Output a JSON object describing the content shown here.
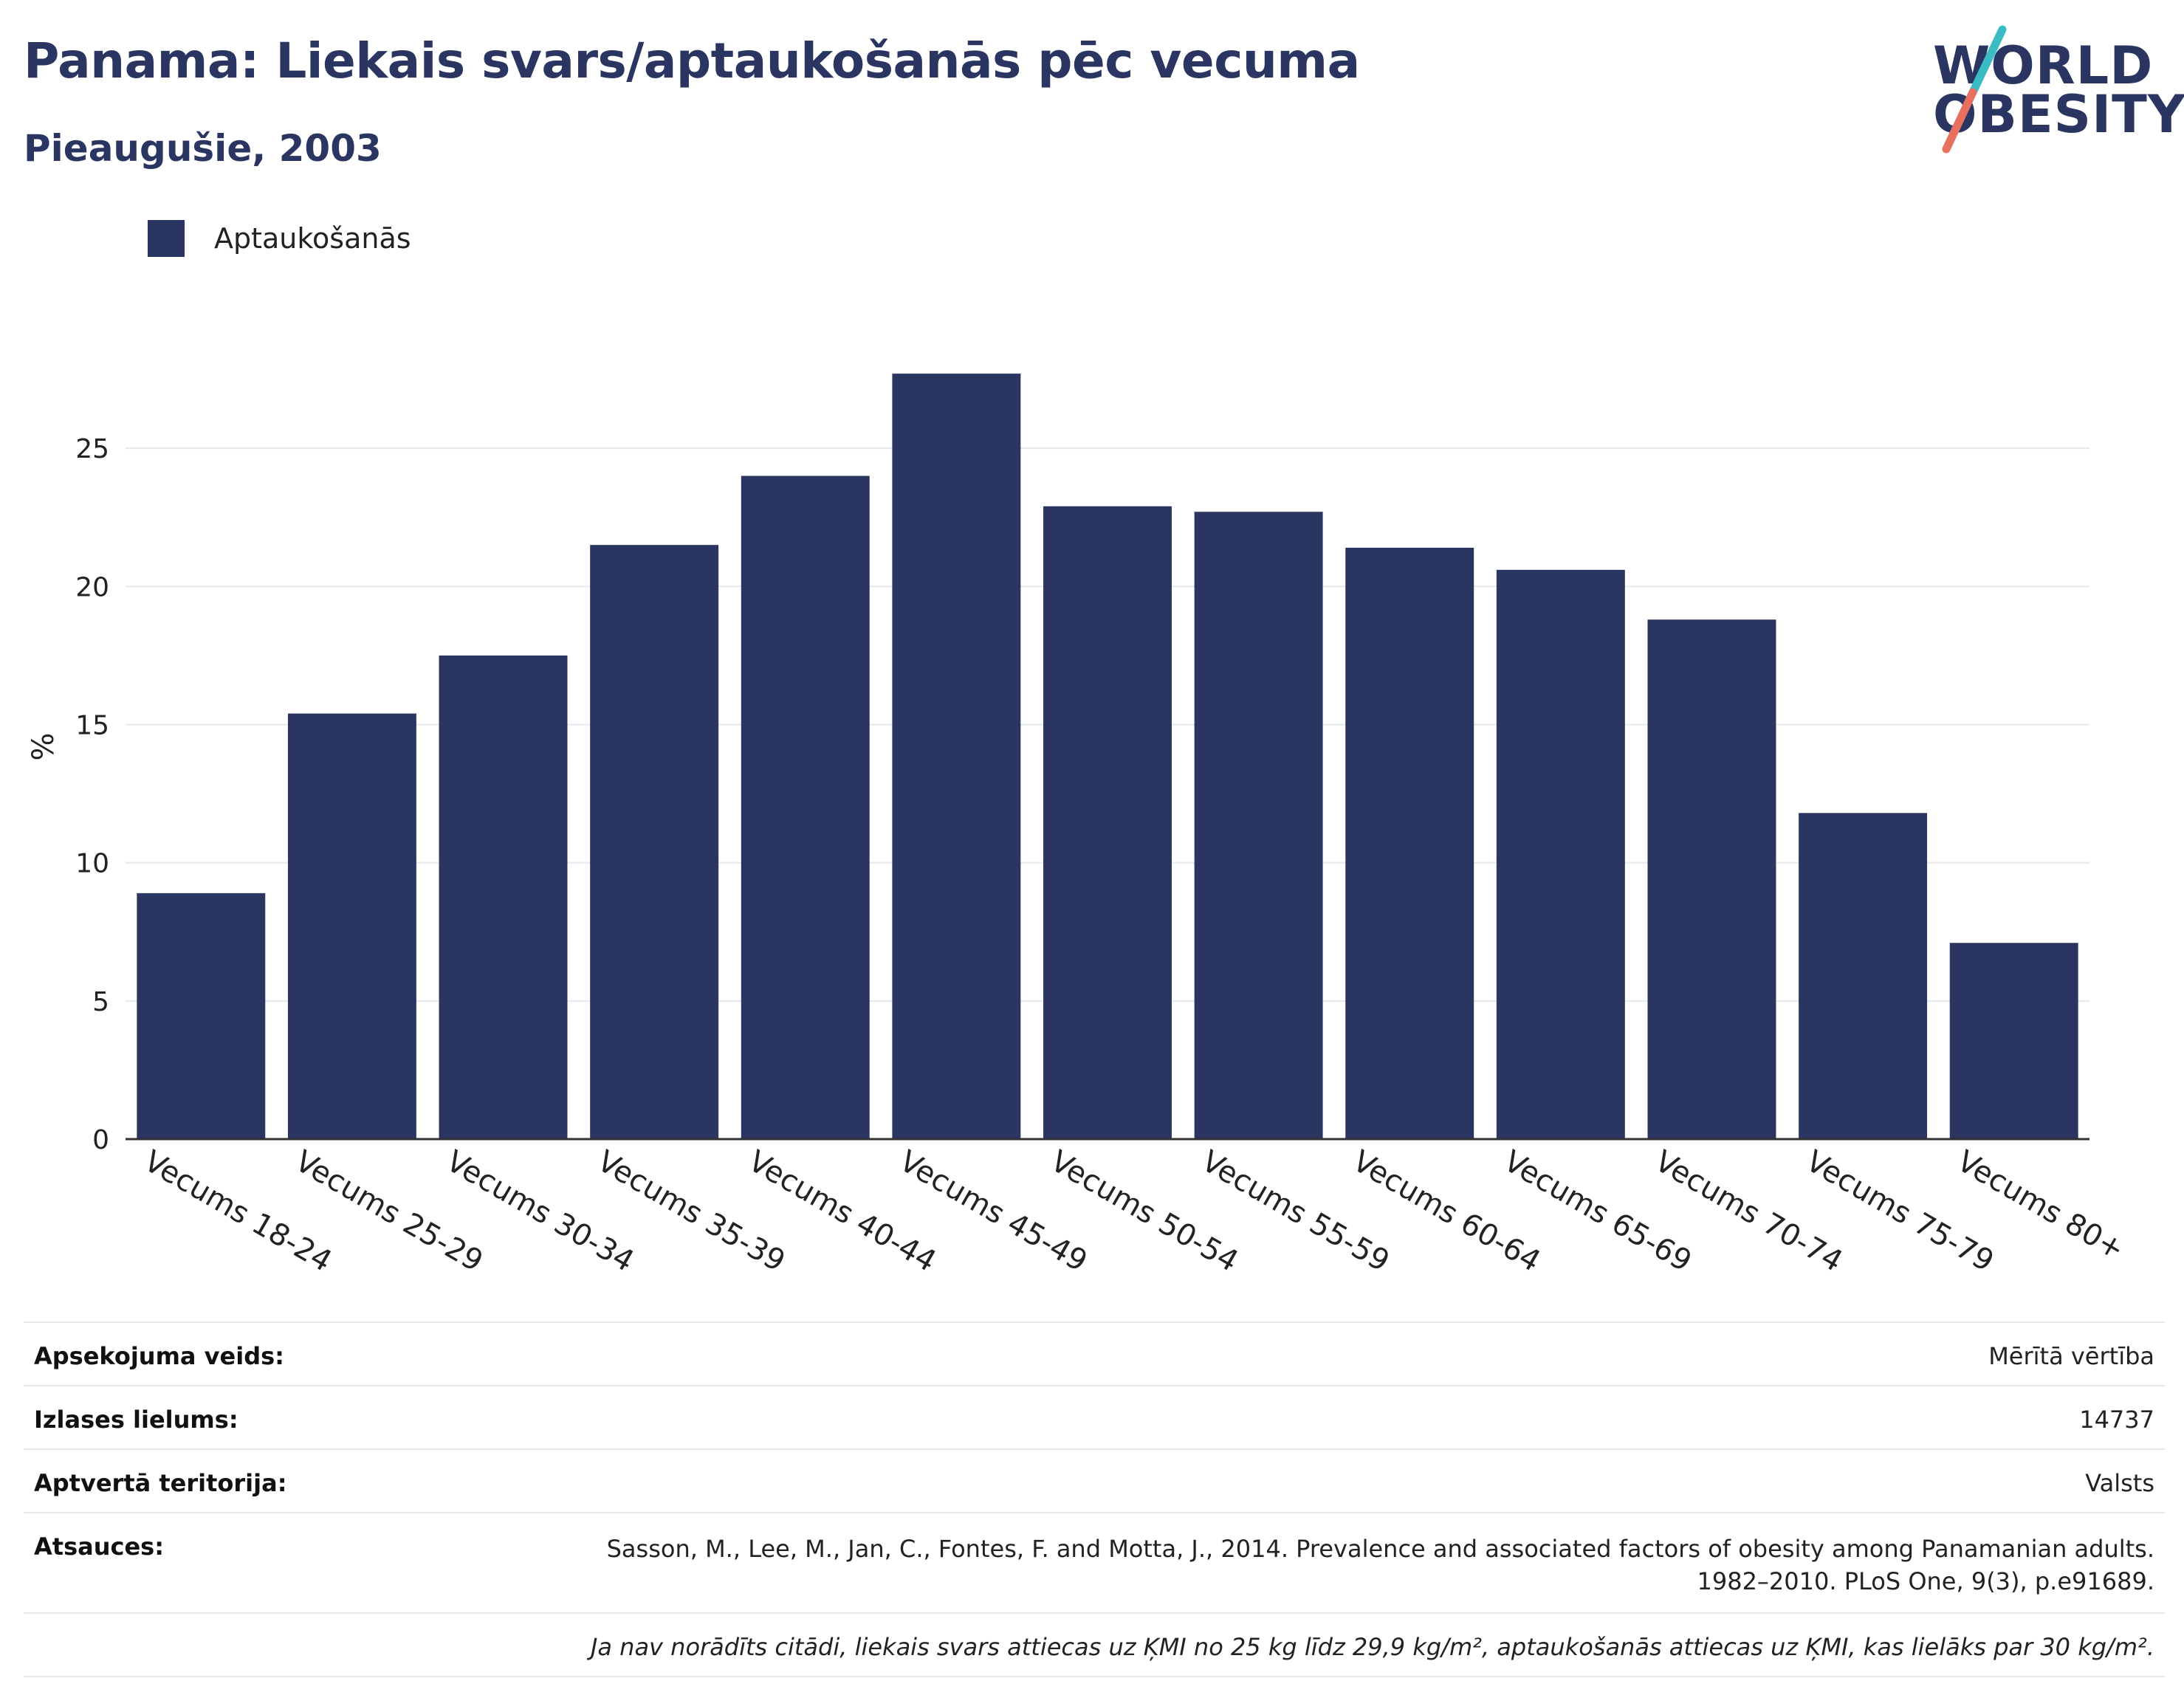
{
  "header": {
    "title": "Panama: Liekais svars/aptaukošanās pēc vecuma",
    "subtitle": "Pieaugušie, 2003"
  },
  "logo": {
    "line1": "WORLD",
    "line2": "OBESITY",
    "slash_colors": [
      "#3bbcc4",
      "#e8705f"
    ]
  },
  "legend": {
    "label": "Aptaukošanās",
    "color": "#2b3561"
  },
  "chart_data": {
    "type": "bar",
    "categories": [
      "Vecums 18-24",
      "Vecums 25-29",
      "Vecums 30-34",
      "Vecums 35-39",
      "Vecums 40-44",
      "Vecums 45-49",
      "Vecums 50-54",
      "Vecums 55-59",
      "Vecums 60-64",
      "Vecums 65-69",
      "Vecums 70-74",
      "Vecums 75-79",
      "Vecums 80+"
    ],
    "series": [
      {
        "name": "Aptaukošanās",
        "color": "#2b3561",
        "values": [
          8.9,
          15.4,
          17.5,
          21.5,
          24.0,
          27.7,
          22.9,
          22.7,
          21.4,
          20.6,
          18.8,
          11.8,
          7.1
        ]
      }
    ],
    "ylabel": "%",
    "ylim": [
      0,
      30
    ],
    "yticks": [
      0,
      5,
      10,
      15,
      20,
      25
    ],
    "grid": true,
    "legend_position": "top-left"
  },
  "info": {
    "survey_type_label": "Apsekojuma veids:",
    "survey_type_value": "Mērītā vērtība",
    "sample_size_label": "Izlases lielums:",
    "sample_size_value": "14737",
    "coverage_label": "Aptvertā teritorija:",
    "coverage_value": "Valsts",
    "references_label": "Atsauces:",
    "references_line1": "Sasson, M., Lee, M., Jan, C., Fontes, F. and Motta, J., 2014. Prevalence and associated factors of obesity among Panamanian adults.",
    "references_line2": "1982–2010. PLoS One, 9(3), p.e91689.",
    "note": "Ja nav norādīts citādi, liekais svars attiecas uz ĶMI no 25 kg līdz 29,9 kg/m², aptaukošanās attiecas uz ĶMI, kas lielāks par 30 kg/m²."
  }
}
